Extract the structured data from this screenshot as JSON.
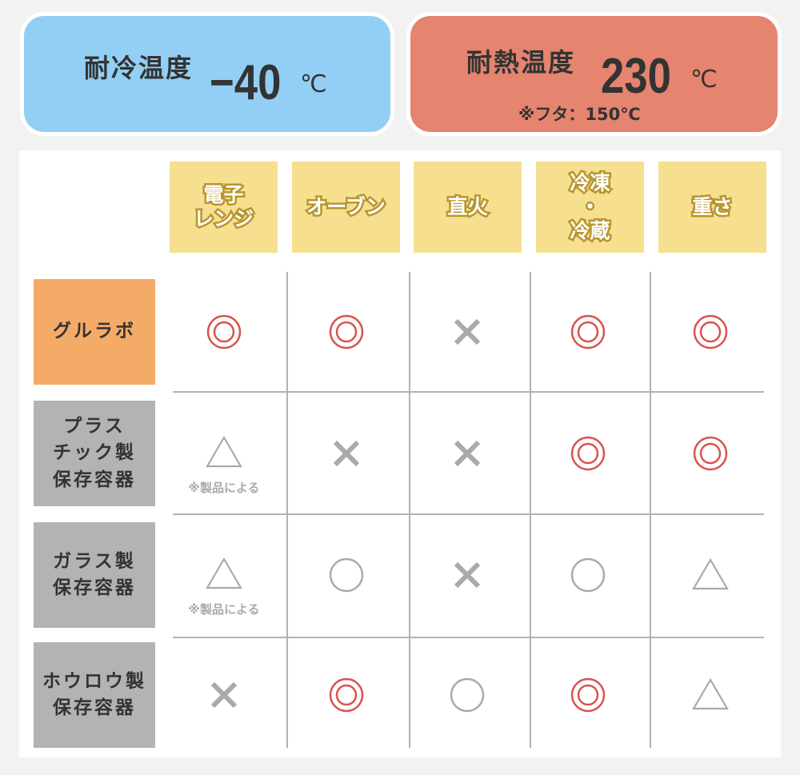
{
  "cold": {
    "label": "耐冷温度",
    "value": "−40",
    "unit": "℃",
    "color": "#93cff5"
  },
  "heat": {
    "label": "耐熱温度",
    "value": "230",
    "unit": "℃",
    "note": "※フタ：150℃",
    "color": "#e5846f"
  },
  "columns": [
    "電子\nレンジ",
    "オーブン",
    "直火",
    "冷凍\n・\n冷蔵",
    "重さ"
  ],
  "rows": [
    {
      "label": "グルラボ",
      "highlight": true,
      "marks": [
        "double-circle",
        "double-circle",
        "cross",
        "double-circle",
        "double-circle"
      ],
      "notes": [
        "",
        "",
        "",
        "",
        ""
      ]
    },
    {
      "label": "プラス\nチック製\n保存容器",
      "highlight": false,
      "marks": [
        "triangle",
        "cross",
        "cross",
        "double-circle",
        "double-circle"
      ],
      "notes": [
        "※製品による",
        "",
        "",
        "",
        ""
      ]
    },
    {
      "label": "ガラス製\n保存容器",
      "highlight": false,
      "marks": [
        "triangle",
        "circle",
        "cross",
        "circle",
        "triangle"
      ],
      "notes": [
        "※製品による",
        "",
        "",
        "",
        ""
      ]
    },
    {
      "label": "ホウロウ製\n保存容器",
      "highlight": false,
      "marks": [
        "cross",
        "double-circle",
        "circle",
        "double-circle",
        "triangle"
      ],
      "notes": [
        "",
        "",
        "",
        "",
        ""
      ]
    }
  ],
  "colors": {
    "good": "#d9534f",
    "neutral": "#aaaaaa",
    "header": "#f6e08f",
    "highlight_row": "#f4ab68",
    "row_label": "#b3b3b3"
  }
}
